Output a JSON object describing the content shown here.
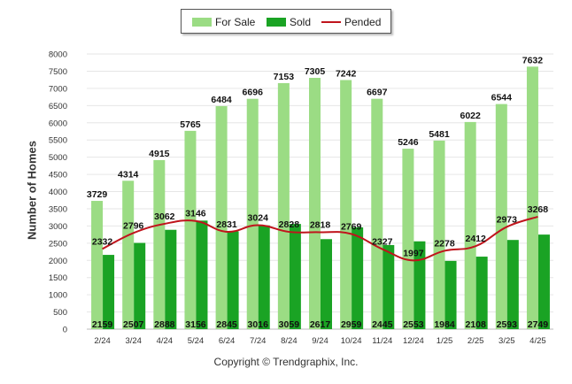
{
  "legend": {
    "for_sale_label": "For Sale",
    "sold_label": "Sold",
    "pended_label": "Pended"
  },
  "copyright": "Copyright © Trendgraphix, Inc.",
  "colors": {
    "for_sale": "#9bdc84",
    "sold": "#1aa324",
    "pended": "#c0141c",
    "grid": "#e6e6e6"
  },
  "chart_data": {
    "type": "bar",
    "title": "",
    "xlabel": "",
    "ylabel": "Number of Homes",
    "ylim": [
      0,
      8000
    ],
    "yticks": [
      0,
      500,
      1000,
      1500,
      2000,
      2500,
      3000,
      3500,
      4000,
      4500,
      5000,
      5500,
      6000,
      6500,
      7000,
      7500,
      8000
    ],
    "categories": [
      "2/24",
      "3/24",
      "4/24",
      "5/24",
      "6/24",
      "7/24",
      "8/24",
      "9/24",
      "10/24",
      "11/24",
      "12/24",
      "1/25",
      "2/25",
      "3/25",
      "4/25"
    ],
    "series": [
      {
        "name": "For Sale",
        "type": "bar",
        "values": [
          3729,
          4314,
          4915,
          5765,
          6484,
          6696,
          7153,
          7305,
          7242,
          6697,
          5246,
          5481,
          6022,
          6544,
          7632
        ]
      },
      {
        "name": "Sold",
        "type": "bar",
        "values": [
          2159,
          2507,
          2888,
          3156,
          2845,
          3016,
          3059,
          2617,
          2959,
          2445,
          2553,
          1984,
          2108,
          2593,
          2749
        ]
      },
      {
        "name": "Pended",
        "type": "line",
        "values": [
          2332,
          2796,
          3062,
          3146,
          2831,
          3024,
          2828,
          2818,
          2769,
          2327,
          1997,
          2278,
          2412,
          2973,
          3268
        ]
      }
    ],
    "grid": true,
    "legend_position": "top-center"
  }
}
